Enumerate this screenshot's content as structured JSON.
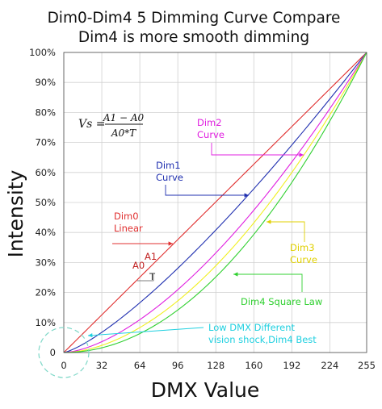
{
  "chart_data": {
    "type": "line",
    "title": "Dim0-Dim4 5 Dimming Curve Compare",
    "subtitle": "Dim4 is more smooth dimming",
    "xlabel": "DMX Value",
    "ylabel": "Intensity",
    "xlim": [
      0,
      255
    ],
    "ylim": [
      0,
      100
    ],
    "x_ticks": [
      "0",
      "32",
      "64",
      "96",
      "128",
      "160",
      "192",
      "224",
      "255"
    ],
    "y_ticks": [
      "0",
      "10%",
      "20%",
      "30%",
      "40%",
      "50%",
      "60%",
      "70%",
      "80%",
      "90%",
      "100%"
    ],
    "grid": true,
    "series": [
      {
        "name": "Dim0 Linear",
        "color": "#e03030",
        "exponent": 1.0,
        "x": [
          0,
          32,
          64,
          96,
          128,
          160,
          192,
          224,
          255
        ],
        "values": [
          0,
          12.5,
          25.1,
          37.6,
          50.2,
          62.7,
          75.3,
          87.8,
          100
        ]
      },
      {
        "name": "Dim1 Curve",
        "color": "#2030b0",
        "exponent": 1.3,
        "x": [
          0,
          32,
          64,
          96,
          128,
          160,
          192,
          224,
          255
        ],
        "values": [
          0,
          6.7,
          16.5,
          28.1,
          40.8,
          54.5,
          69.1,
          84.5,
          100
        ]
      },
      {
        "name": "Dim2 Curve",
        "color": "#e020e0",
        "exponent": 1.6,
        "x": [
          0,
          32,
          64,
          96,
          128,
          160,
          192,
          224,
          255
        ],
        "values": [
          0,
          3.6,
          11.0,
          20.9,
          33.1,
          47.3,
          63.4,
          81.2,
          100
        ]
      },
      {
        "name": "Dim3 Curve",
        "color": "#f0f020",
        "exponent": 1.8,
        "x": [
          0,
          32,
          64,
          96,
          128,
          160,
          192,
          224,
          255
        ],
        "values": [
          0,
          2.4,
          8.3,
          17.2,
          28.9,
          43.2,
          59.9,
          79.1,
          100
        ]
      },
      {
        "name": "Dim4 Square Law",
        "color": "#30d030",
        "exponent": 2.0,
        "x": [
          0,
          32,
          64,
          96,
          128,
          160,
          192,
          224,
          255
        ],
        "values": [
          0,
          1.6,
          6.3,
          14.2,
          25.2,
          39.4,
          56.7,
          77.2,
          100
        ]
      }
    ],
    "annotations": [
      {
        "id": "dim0",
        "lines": [
          "Dim0",
          "Linear"
        ],
        "color": "#e03030"
      },
      {
        "id": "dim1",
        "lines": [
          "Dim1",
          "Curve"
        ],
        "color": "#2030b0"
      },
      {
        "id": "dim2",
        "lines": [
          "Dim2",
          "Curve"
        ],
        "color": "#e020e0"
      },
      {
        "id": "dim3",
        "lines": [
          "Dim3",
          "Curve"
        ],
        "color": "#e0d000"
      },
      {
        "id": "dim4",
        "lines": [
          "Dim4 Square Law"
        ],
        "color": "#30d030"
      },
      {
        "id": "lowdmx",
        "lines": [
          "Low DMX Different",
          "vision shock,Dim4 Best"
        ],
        "color": "#20d0e0"
      }
    ],
    "triangle_labels": {
      "a1": "A1",
      "a0": "A0",
      "t": "T"
    },
    "formula": {
      "lhs": "Vs =",
      "numerator": "A1 − A0",
      "denominator": "A0*T"
    }
  }
}
